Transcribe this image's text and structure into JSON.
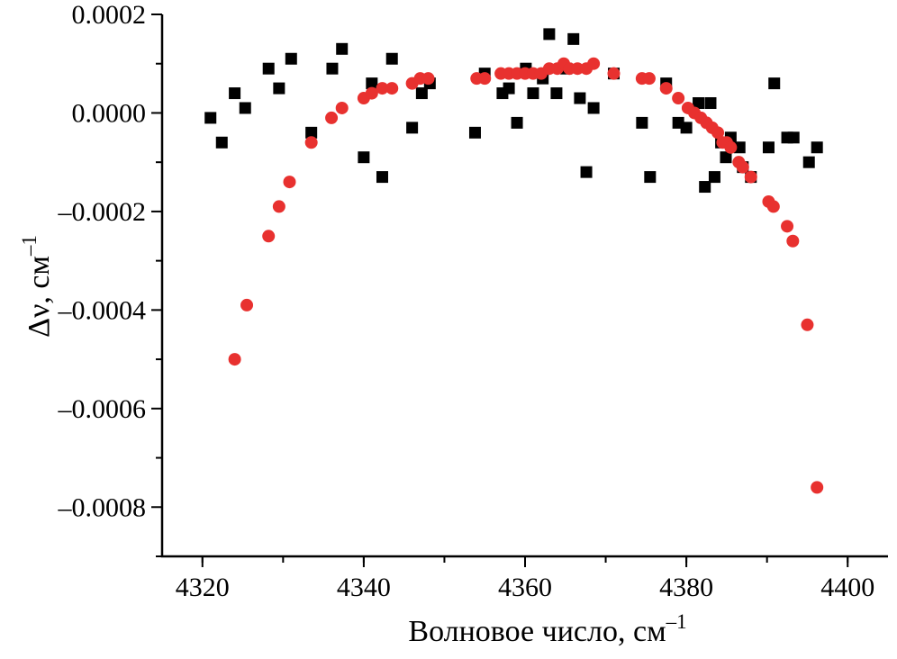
{
  "chart_data": {
    "type": "scatter",
    "xlabel": "Волновое число, см",
    "xlabel_sup": "–1",
    "ylabel": "Δν, см",
    "ylabel_sup": "–1",
    "xlim": [
      4315,
      4405
    ],
    "ylim": [
      -0.0009,
      0.0002
    ],
    "x_ticks": [
      4320,
      4340,
      4360,
      4380,
      4400
    ],
    "x_tick_labels": [
      "4320",
      "4340",
      "4360",
      "4380",
      "4400"
    ],
    "y_ticks": [
      0.0002,
      0.0,
      -0.0002,
      -0.0004,
      -0.0006,
      -0.0008
    ],
    "y_tick_labels": [
      "0.0002",
      "0.0000",
      "–0.0002",
      "–0.0004",
      "–0.0006",
      "–0.0008"
    ],
    "grid": false,
    "series": [
      {
        "marker": "square",
        "color": "#000000",
        "points": [
          [
            4321.0,
            -1e-05
          ],
          [
            4322.4,
            -6e-05
          ],
          [
            4324.0,
            4e-05
          ],
          [
            4325.3,
            1e-05
          ],
          [
            4328.2,
            9e-05
          ],
          [
            4329.5,
            5e-05
          ],
          [
            4331.0,
            0.00011
          ],
          [
            4333.5,
            -4e-05
          ],
          [
            4336.1,
            9e-05
          ],
          [
            4337.3,
            0.00013
          ],
          [
            4340.0,
            -9e-05
          ],
          [
            4341.0,
            6e-05
          ],
          [
            4342.3,
            -0.00013
          ],
          [
            4343.5,
            0.00011
          ],
          [
            4346.0,
            -3e-05
          ],
          [
            4347.2,
            4e-05
          ],
          [
            4348.2,
            6e-05
          ],
          [
            4353.8,
            -4e-05
          ],
          [
            4355.0,
            8e-05
          ],
          [
            4357.2,
            4e-05
          ],
          [
            4358.0,
            5e-05
          ],
          [
            4359.0,
            -2e-05
          ],
          [
            4360.1,
            9e-05
          ],
          [
            4361.0,
            4e-05
          ],
          [
            4362.2,
            7e-05
          ],
          [
            4363.0,
            0.00016
          ],
          [
            4363.9,
            4e-05
          ],
          [
            4365.1,
            9e-05
          ],
          [
            4366.0,
            0.00015
          ],
          [
            4366.8,
            3e-05
          ],
          [
            4367.6,
            -0.00012
          ],
          [
            4368.5,
            1e-05
          ],
          [
            4371.0,
            8e-05
          ],
          [
            4374.5,
            -2e-05
          ],
          [
            4375.5,
            -0.00013
          ],
          [
            4377.5,
            6e-05
          ],
          [
            4379.0,
            -2e-05
          ],
          [
            4380.0,
            -3e-05
          ],
          [
            4381.5,
            2e-05
          ],
          [
            4382.3,
            -0.00015
          ],
          [
            4383.0,
            2e-05
          ],
          [
            4383.5,
            -0.00013
          ],
          [
            4384.3,
            -6e-05
          ],
          [
            4384.9,
            -9e-05
          ],
          [
            4385.5,
            -5e-05
          ],
          [
            4386.6,
            -7e-05
          ],
          [
            4387.0,
            -0.00011
          ],
          [
            4388.0,
            -0.00013
          ],
          [
            4390.2,
            -7e-05
          ],
          [
            4390.9,
            6e-05
          ],
          [
            4392.5,
            -5e-05
          ],
          [
            4393.3,
            -5e-05
          ],
          [
            4395.2,
            -0.0001
          ],
          [
            4396.2,
            -7e-05
          ]
        ]
      },
      {
        "marker": "circle",
        "color": "#e8312f",
        "points": [
          [
            4324.0,
            -0.0005
          ],
          [
            4325.5,
            -0.00039
          ],
          [
            4328.2,
            -0.00025
          ],
          [
            4329.5,
            -0.00019
          ],
          [
            4330.8,
            -0.00014
          ],
          [
            4333.5,
            -6e-05
          ],
          [
            4336.0,
            -1e-05
          ],
          [
            4337.3,
            1e-05
          ],
          [
            4340.0,
            3e-05
          ],
          [
            4341.0,
            4e-05
          ],
          [
            4342.3,
            5e-05
          ],
          [
            4343.5,
            5e-05
          ],
          [
            4346.0,
            6e-05
          ],
          [
            4347.0,
            7e-05
          ],
          [
            4348.0,
            7e-05
          ],
          [
            4354.0,
            7e-05
          ],
          [
            4355.0,
            7e-05
          ],
          [
            4357.0,
            8e-05
          ],
          [
            4358.0,
            8e-05
          ],
          [
            4359.0,
            8e-05
          ],
          [
            4360.0,
            8e-05
          ],
          [
            4361.0,
            8e-05
          ],
          [
            4362.0,
            8e-05
          ],
          [
            4363.0,
            9e-05
          ],
          [
            4364.0,
            9e-05
          ],
          [
            4364.8,
            0.0001
          ],
          [
            4365.5,
            9e-05
          ],
          [
            4366.5,
            9e-05
          ],
          [
            4367.6,
            9e-05
          ],
          [
            4368.5,
            0.0001
          ],
          [
            4371.0,
            8e-05
          ],
          [
            4374.5,
            7e-05
          ],
          [
            4375.4,
            7e-05
          ],
          [
            4377.5,
            5e-05
          ],
          [
            4379.0,
            3e-05
          ],
          [
            4380.2,
            1e-05
          ],
          [
            4381.0,
            0.0
          ],
          [
            4381.8,
            -1e-05
          ],
          [
            4382.5,
            -2e-05
          ],
          [
            4383.2,
            -3e-05
          ],
          [
            4383.9,
            -4e-05
          ],
          [
            4384.5,
            -6e-05
          ],
          [
            4385.0,
            -6e-05
          ],
          [
            4385.5,
            -7e-05
          ],
          [
            4386.5,
            -0.0001
          ],
          [
            4387.0,
            -0.00011
          ],
          [
            4388.0,
            -0.00013
          ],
          [
            4390.2,
            -0.00018
          ],
          [
            4390.8,
            -0.00019
          ],
          [
            4392.5,
            -0.00023
          ],
          [
            4393.2,
            -0.00026
          ],
          [
            4395.0,
            -0.00043
          ],
          [
            4396.2,
            -0.00076
          ]
        ]
      }
    ]
  }
}
